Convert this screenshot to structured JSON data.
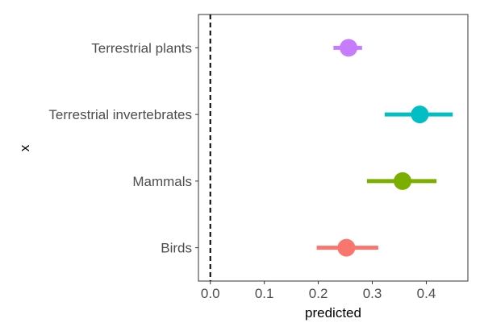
{
  "chart_data": {
    "type": "forest",
    "title": "",
    "xlabel": "predicted",
    "ylabel": "x",
    "xlim": [
      -0.022,
      0.477
    ],
    "x_ticks": [
      0.0,
      0.1,
      0.2,
      0.3,
      0.4
    ],
    "x_tick_labels": [
      "0.0",
      "0.1",
      "0.2",
      "0.3",
      "0.4"
    ],
    "reference_line": {
      "x": 0,
      "style": "dashed",
      "color": "#000000"
    },
    "grid": false,
    "legend": "none",
    "categories": [
      "Birds",
      "Mammals",
      "Terrestrial invertebrates",
      "Terrestrial plants"
    ],
    "points": [
      {
        "category": "Birds",
        "estimate": 0.252,
        "lower": 0.197,
        "upper": 0.311,
        "color": "#F8766D"
      },
      {
        "category": "Mammals",
        "estimate": 0.356,
        "lower": 0.29,
        "upper": 0.419,
        "color": "#7CAE00"
      },
      {
        "category": "Terrestrial invertebrates",
        "estimate": 0.388,
        "lower": 0.323,
        "upper": 0.449,
        "color": "#00BFC4"
      },
      {
        "category": "Terrestrial plants",
        "estimate": 0.256,
        "lower": 0.228,
        "upper": 0.281,
        "color": "#C77CFF"
      }
    ]
  }
}
